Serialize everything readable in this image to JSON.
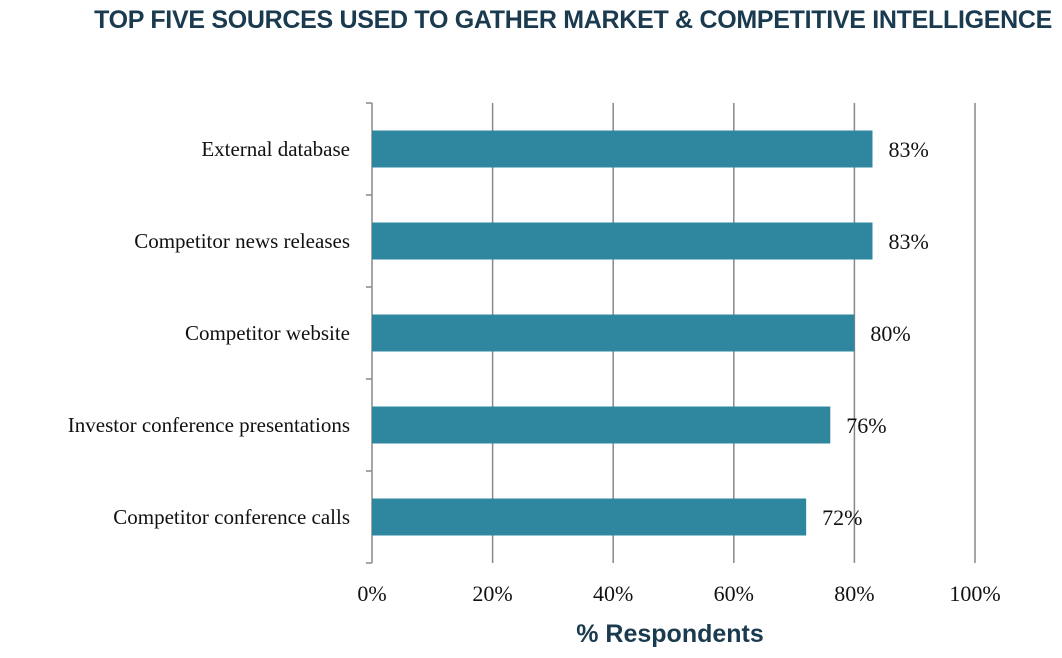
{
  "title": "TOP FIVE SOURCES USED TO GATHER MARKET & COMPETITIVE INTELLIGENCE",
  "colors": {
    "bar": "#2e879f",
    "grid": "#888888",
    "title": "#1a3a4f"
  },
  "chart_data": {
    "type": "bar",
    "orientation": "horizontal",
    "title": "TOP FIVE SOURCES USED TO GATHER MARKET & COMPETITIVE INTELLIGENCE",
    "xlabel": "% Respondents",
    "ylabel": "",
    "xlim": [
      0,
      100
    ],
    "x_ticks": [
      "0%",
      "20%",
      "40%",
      "60%",
      "80%",
      "100%"
    ],
    "grid": true,
    "categories": [
      "External database",
      "Competitor news releases",
      "Competitor website",
      "Investor conference presentations",
      "Competitor conference calls"
    ],
    "values": [
      83,
      83,
      80,
      76,
      72
    ],
    "data_labels": [
      "83%",
      "83%",
      "80%",
      "76%",
      "72%"
    ]
  }
}
